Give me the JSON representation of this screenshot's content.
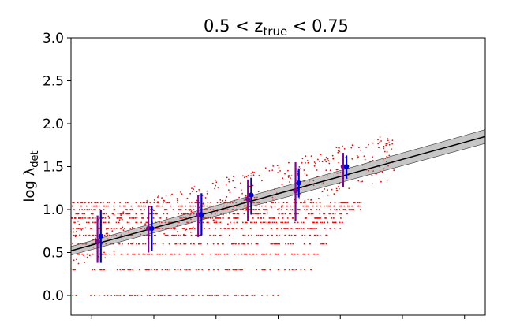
{
  "chart_data": {
    "type": "scatter",
    "title_parts": {
      "lhs": "0.5 < z",
      "sub": "true",
      "rhs": " < 0.75"
    },
    "ylabel_parts": {
      "base": "log λ",
      "sub": "det"
    },
    "xlabel": "",
    "ylim": [
      0.0,
      3.0
    ],
    "yticks": [
      0.0,
      0.5,
      1.0,
      1.5,
      2.0,
      2.5,
      3.0
    ],
    "ytick_labels": [
      "0.0",
      "0.5",
      "1.0",
      "1.5",
      "2.0",
      "2.5",
      "3.0"
    ],
    "xlim": [
      0,
      1
    ],
    "xticks": [
      0.05,
      0.2,
      0.35,
      0.5,
      0.65,
      0.8,
      0.95
    ],
    "grid": false,
    "colors": {
      "scatter": "#ff0000",
      "fit_line": "#000000",
      "fit_band": "#808080",
      "binned_blue": "#0000dd",
      "binned_purple": "#7a0a8a"
    },
    "fit_line": {
      "x": [
        0,
        1
      ],
      "y": [
        0.52,
        1.85
      ],
      "band_halfwidth_start": 0.05,
      "band_halfwidth_end": 0.08
    },
    "binned_blue": [
      {
        "x": 0.072,
        "y": 0.69,
        "lo": 0.38,
        "hi": 1.0
      },
      {
        "x": 0.195,
        "y": 0.78,
        "lo": 0.52,
        "hi": 1.04
      },
      {
        "x": 0.315,
        "y": 0.94,
        "lo": 0.7,
        "hi": 1.19
      },
      {
        "x": 0.435,
        "y": 1.17,
        "lo": 0.94,
        "hi": 1.37
      },
      {
        "x": 0.55,
        "y": 1.31,
        "lo": 1.14,
        "hi": 1.48
      },
      {
        "x": 0.665,
        "y": 1.5,
        "lo": 1.36,
        "hi": 1.63
      }
    ],
    "binned_purple": [
      {
        "x": 0.064,
        "y": 0.63,
        "lo": 0.38,
        "hi": 0.93
      },
      {
        "x": 0.187,
        "y": 0.78,
        "lo": 0.5,
        "hi": 1.04
      },
      {
        "x": 0.307,
        "y": 0.94,
        "lo": 0.68,
        "hi": 1.17
      },
      {
        "x": 0.427,
        "y": 1.12,
        "lo": 0.87,
        "hi": 1.35
      },
      {
        "x": 0.542,
        "y": 1.22,
        "lo": 0.87,
        "hi": 1.55
      },
      {
        "x": 0.657,
        "y": 1.5,
        "lo": 1.26,
        "hi": 1.66
      }
    ],
    "scatter_levels": [
      {
        "y": 0.0,
        "xmax": 0.5
      },
      {
        "y": 0.3,
        "xmax": 0.58
      },
      {
        "y": 0.48,
        "xmax": 0.6
      },
      {
        "y": 0.6,
        "xmax": 0.62
      },
      {
        "y": 0.7,
        "xmax": 0.64
      },
      {
        "y": 0.78,
        "xmax": 0.65
      },
      {
        "y": 0.85,
        "xmax": 0.66
      },
      {
        "y": 0.9,
        "xmax": 0.67
      },
      {
        "y": 0.95,
        "xmax": 0.68
      },
      {
        "y": 1.0,
        "xmax": 0.7
      },
      {
        "y": 1.04,
        "xmax": 0.72
      },
      {
        "y": 1.08,
        "xmax": 0.72
      }
    ]
  }
}
